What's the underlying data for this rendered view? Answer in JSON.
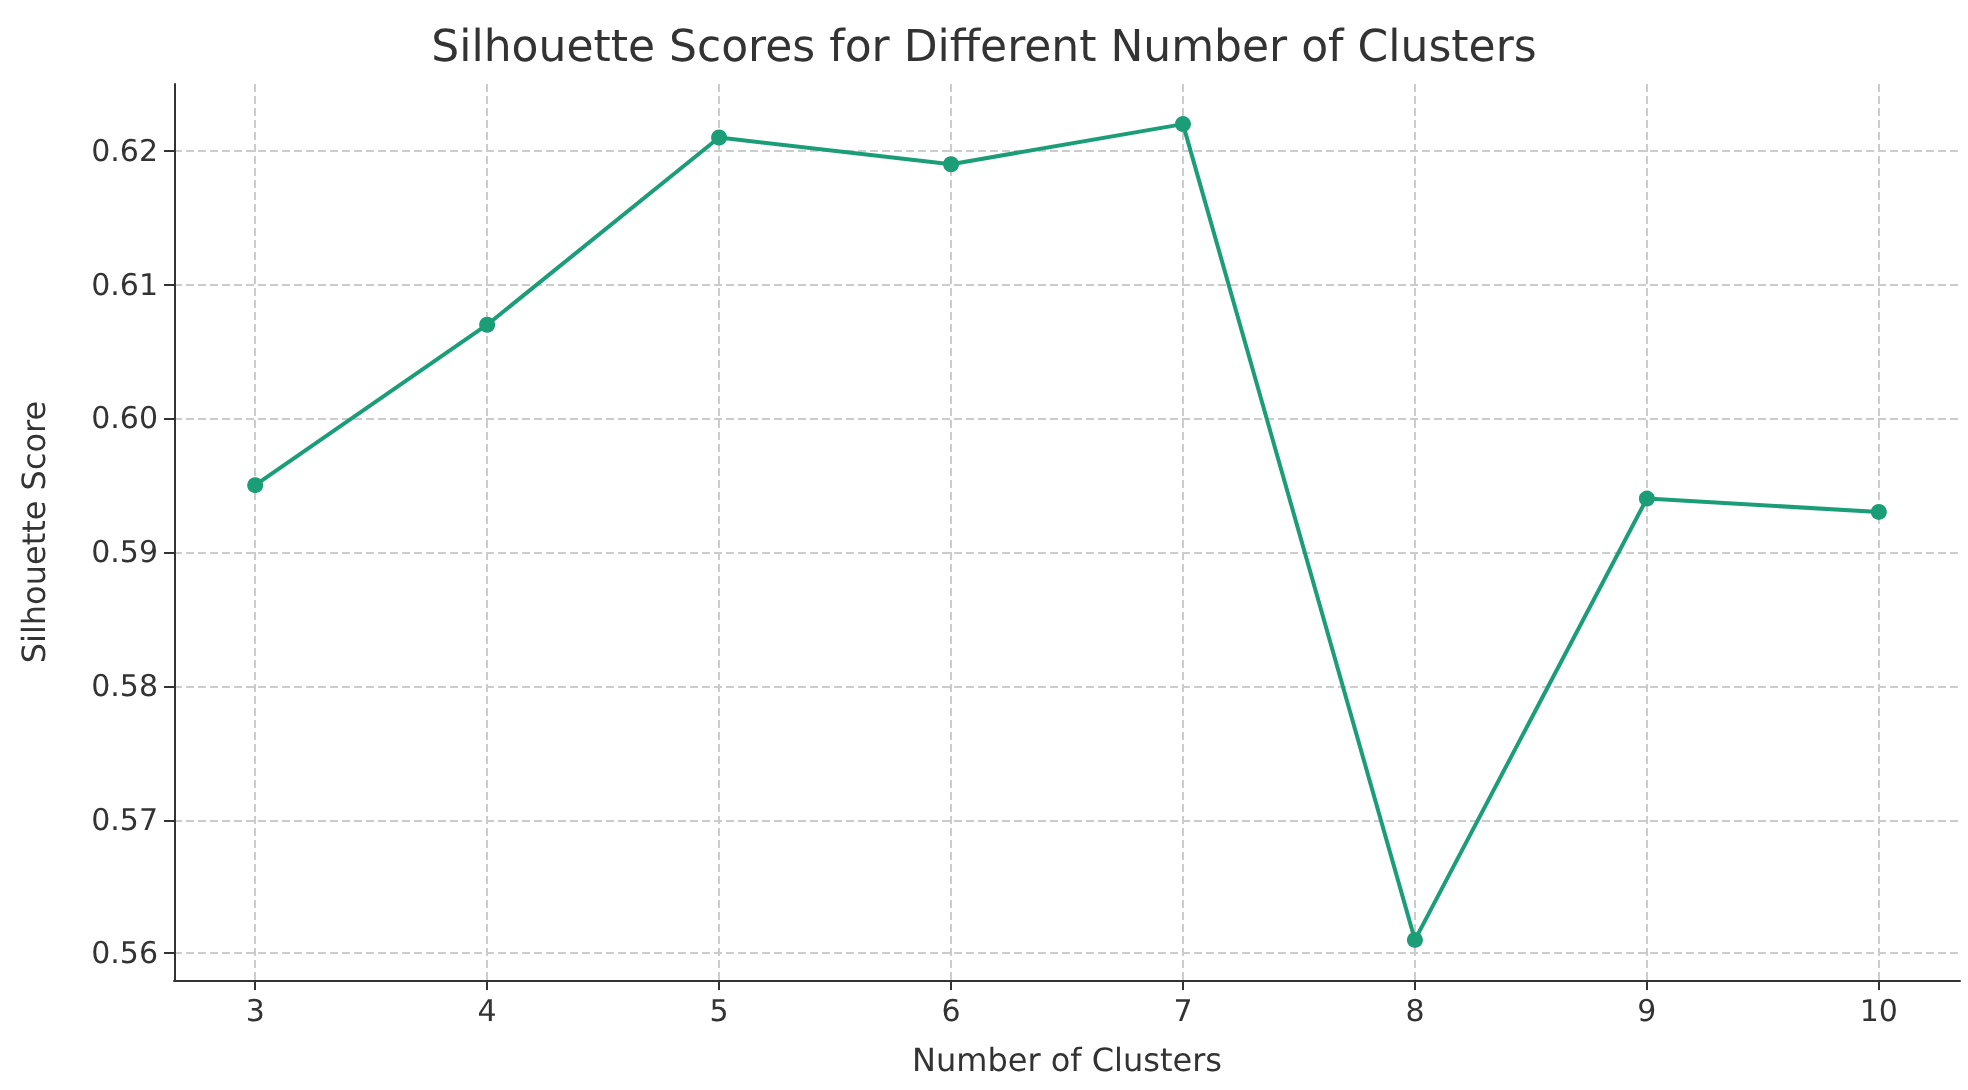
{
  "chart_data": {
    "type": "line",
    "title": "Silhouette Scores for Different Number of Clusters",
    "xlabel": "Number of Clusters",
    "ylabel": "Silhouette Score",
    "x": [
      3,
      4,
      5,
      6,
      7,
      8,
      9,
      10
    ],
    "series": [
      {
        "color": "#1b9e77",
        "values": [
          0.595,
          0.607,
          0.621,
          0.619,
          0.622,
          0.561,
          0.594,
          0.593
        ]
      }
    ],
    "xlim": [
      2.65,
      10.35
    ],
    "xticks": [
      3,
      4,
      5,
      6,
      7,
      8,
      9,
      10
    ],
    "ylim": [
      0.558,
      0.625
    ],
    "yticks": [
      0.56,
      0.57,
      0.58,
      0.59,
      {
        "value": 0.6,
        "label": "0.60"
      },
      0.61,
      0.62
    ],
    "grid": true,
    "marker": "circle",
    "line_style": "solid"
  }
}
